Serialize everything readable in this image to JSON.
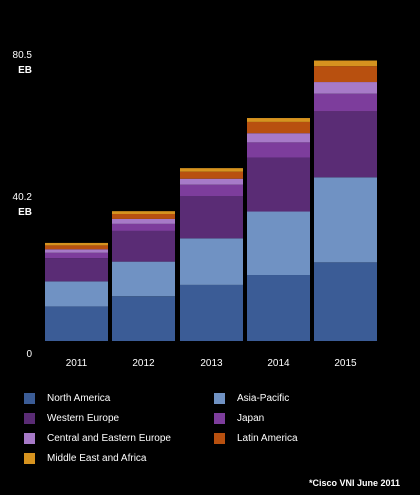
{
  "chart_data": {
    "type": "bar",
    "stacked": true,
    "categories": [
      "2011",
      "2012",
      "2013",
      "2014",
      "2015"
    ],
    "y_ticks": [
      {
        "value": "80.5",
        "unit": "EB",
        "position": 80.5
      },
      {
        "value": "40.2",
        "unit": "EB",
        "position": 40.2
      },
      {
        "value": "0",
        "unit": "",
        "position": 0
      }
    ],
    "ylim": [
      0,
      80.5
    ],
    "grid": false,
    "legend_placement": "bottom",
    "series": [
      {
        "name": "North America",
        "color": "#3b5c96",
        "values": [
          9.8,
          12.7,
          15.9,
          18.7,
          22.3
        ]
      },
      {
        "name": "Asia-Pacific",
        "color": "#7092c3",
        "values": [
          7.1,
          9.8,
          13.2,
          18.0,
          24.1
        ]
      },
      {
        "name": "Western Europe",
        "color": "#5a2c75",
        "values": [
          6.6,
          8.7,
          12.0,
          15.3,
          18.7
        ]
      },
      {
        "name": "Japan",
        "color": "#7d3d9c",
        "values": [
          1.5,
          2.0,
          3.2,
          4.3,
          5.0
        ]
      },
      {
        "name": "Central and Eastern Europe",
        "color": "#a77ac8",
        "values": [
          1.0,
          1.4,
          1.7,
          2.6,
          3.3
        ]
      },
      {
        "name": "Latin America",
        "color": "#b8500f",
        "values": [
          1.1,
          1.4,
          2.0,
          3.2,
          4.5
        ]
      },
      {
        "name": "Middle East and Africa",
        "color": "#d6931f",
        "values": [
          0.7,
          0.8,
          1.0,
          1.1,
          1.6
        ]
      }
    ]
  },
  "legend": {
    "columns": [
      [
        "North America",
        "Western Europe",
        "Central and Eastern Europe",
        "Middle East and Africa"
      ],
      [
        "Asia-Pacific",
        "Japan",
        "Latin America"
      ]
    ]
  },
  "footnote": "*Cisco VNI June 2011"
}
